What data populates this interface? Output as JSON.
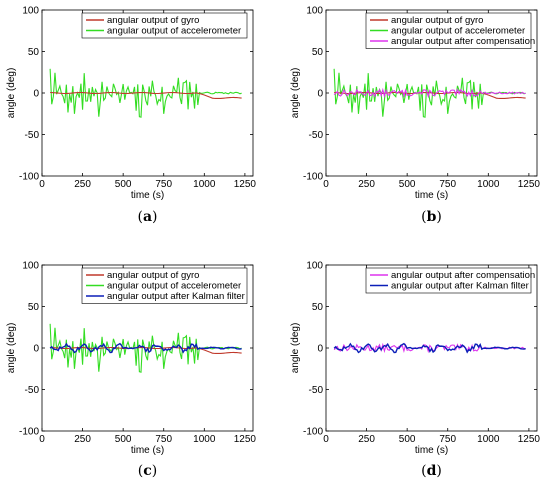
{
  "colors": {
    "gyro": "#c0392b",
    "accelerometer": "#33dd22",
    "compensation": "#dd33ee",
    "kalman": "#0b1fb8",
    "axis": "#000000"
  },
  "chart_data": [
    {
      "id": "a",
      "type": "line",
      "caption": "a",
      "xlabel": "time (s)",
      "ylabel": "angle (deg)",
      "xlim": [
        0,
        1300
      ],
      "ylim": [
        -100,
        100
      ],
      "xticks": [
        0,
        250,
        500,
        750,
        1000,
        1250
      ],
      "yticks": [
        -100,
        -50,
        0,
        50,
        100
      ],
      "legend": "top-left",
      "grid": false,
      "series": [
        {
          "key": "gyro",
          "name": "angular output of gyro"
        },
        {
          "key": "accelerometer",
          "name": "angular output of accelerometer"
        }
      ]
    },
    {
      "id": "b",
      "type": "line",
      "caption": "b",
      "xlabel": "time (s)",
      "ylabel": "angle (deg)",
      "xlim": [
        0,
        1300
      ],
      "ylim": [
        -100,
        100
      ],
      "xticks": [
        0,
        250,
        500,
        750,
        1000,
        1250
      ],
      "yticks": [
        -100,
        -50,
        0,
        50,
        100
      ],
      "legend": "top-left",
      "grid": false,
      "series": [
        {
          "key": "gyro",
          "name": "angular output of gyro"
        },
        {
          "key": "accelerometer",
          "name": "angular output of accelerometer"
        },
        {
          "key": "compensation",
          "name": "angular output after compensation"
        }
      ]
    },
    {
      "id": "c",
      "type": "line",
      "caption": "c",
      "xlabel": "time (s)",
      "ylabel": "angle (deg)",
      "xlim": [
        0,
        1300
      ],
      "ylim": [
        -100,
        100
      ],
      "xticks": [
        0,
        250,
        500,
        750,
        1000,
        1250
      ],
      "yticks": [
        -100,
        -50,
        0,
        50,
        100
      ],
      "legend": "top-left",
      "grid": false,
      "series": [
        {
          "key": "gyro",
          "name": "angular output of gyro"
        },
        {
          "key": "accelerometer",
          "name": "angular output of accelerometer"
        },
        {
          "key": "kalman",
          "name": "angular output after Kalman filter"
        }
      ]
    },
    {
      "id": "d",
      "type": "line",
      "caption": "d",
      "xlabel": "time (s)",
      "ylabel": "angle (deg)",
      "xlim": [
        0,
        1300
      ],
      "ylim": [
        -100,
        100
      ],
      "xticks": [
        0,
        250,
        500,
        750,
        1000,
        1250
      ],
      "yticks": [
        -100,
        -50,
        0,
        50,
        100
      ],
      "legend": "top-left",
      "grid": false,
      "series": [
        {
          "key": "compensation",
          "name": "angular output after compensation"
        },
        {
          "key": "kalman",
          "name": "angular output after Kalman filter"
        }
      ]
    }
  ],
  "signals": {
    "time_start": 50,
    "time_end": 1230,
    "time_step": 10,
    "accel_active_segments": [
      [
        50,
        530
      ],
      [
        570,
        960
      ]
    ],
    "accel_amplitude": 15,
    "accel_peak": 30,
    "gyro_offset_after_950": -6,
    "compensation_amplitude": 4,
    "kalman_amplitude": 5
  }
}
